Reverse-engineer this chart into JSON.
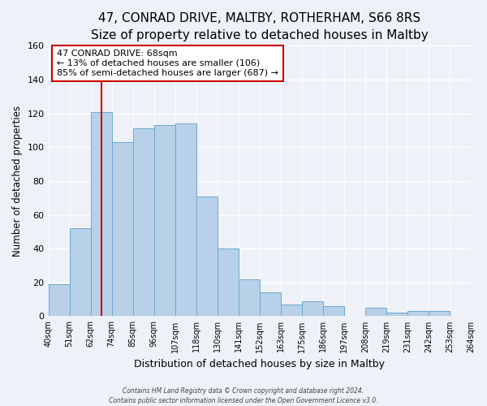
{
  "title": "47, CONRAD DRIVE, MALTBY, ROTHERHAM, S66 8RS",
  "subtitle": "Size of property relative to detached houses in Maltby",
  "xlabel": "Distribution of detached houses by size in Maltby",
  "ylabel": "Number of detached properties",
  "bin_labels": [
    "40sqm",
    "51sqm",
    "62sqm",
    "74sqm",
    "85sqm",
    "96sqm",
    "107sqm",
    "118sqm",
    "130sqm",
    "141sqm",
    "152sqm",
    "163sqm",
    "175sqm",
    "186sqm",
    "197sqm",
    "208sqm",
    "219sqm",
    "231sqm",
    "242sqm",
    "253sqm",
    "264sqm"
  ],
  "bar_values": [
    19,
    52,
    121,
    103,
    111,
    113,
    114,
    71,
    40,
    22,
    14,
    7,
    9,
    6,
    0,
    5,
    2,
    3,
    3,
    0
  ],
  "bar_color": "#b8d0e8",
  "bar_edge_color": "#6aaad4",
  "ylim": [
    0,
    160
  ],
  "yticks": [
    0,
    20,
    40,
    60,
    80,
    100,
    120,
    140,
    160
  ],
  "property_value": 68,
  "property_label": "47 CONRAD DRIVE: 68sqm",
  "annotation_line1": "← 13% of detached houses are smaller (106)",
  "annotation_line2": "85% of semi-detached houses are larger (687) →",
  "vline_color": "#cc0000",
  "box_color": "#cc0000",
  "footer_line1": "Contains HM Land Registry data © Crown copyright and database right 2024.",
  "footer_line2": "Contains public sector information licensed under the Open Government Licence v3.0.",
  "background_color": "#eef2f8",
  "plot_bg_color": "#eef2f8",
  "title_fontsize": 11,
  "subtitle_fontsize": 9.5,
  "ylabel_fontsize": 8.5,
  "xlabel_fontsize": 9
}
